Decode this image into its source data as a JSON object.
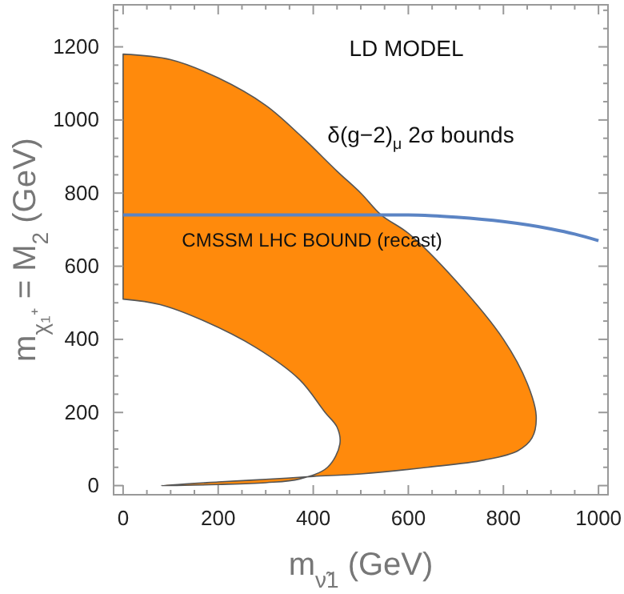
{
  "chart_data": {
    "type": "line",
    "xlabel": "m$_{ν̃1}$ (GeV)",
    "ylabel": "m$_{χ₁⁺}$ = M$_{2}$ (GeV)",
    "xlim": [
      -20,
      1020
    ],
    "ylim": [
      -25,
      1315
    ],
    "xticks": [
      0,
      {
        "value": 50,
        "label": null
      },
      {
        "value": 100,
        "label": null
      },
      {
        "value": 150,
        "label": null
      },
      200,
      {
        "value": 250,
        "label": null
      },
      {
        "value": 300,
        "label": null
      },
      {
        "value": 350,
        "label": null
      },
      400,
      {
        "value": 450,
        "label": null
      },
      {
        "value": 500,
        "label": null
      },
      {
        "value": 550,
        "label": null
      },
      600,
      {
        "value": 650,
        "label": null
      },
      {
        "value": 700,
        "label": null
      },
      {
        "value": 750,
        "label": null
      },
      800,
      {
        "value": 850,
        "label": null
      },
      {
        "value": 900,
        "label": null
      },
      {
        "value": 950,
        "label": null
      },
      1000
    ],
    "yticks": [
      0,
      {
        "value": 50,
        "label": null
      },
      {
        "value": 100,
        "label": null
      },
      {
        "value": 150,
        "label": null
      },
      200,
      {
        "value": 250,
        "label": null
      },
      {
        "value": 300,
        "label": null
      },
      {
        "value": 350,
        "label": null
      },
      400,
      {
        "value": 450,
        "label": null
      },
      {
        "value": 500,
        "label": null
      },
      {
        "value": 550,
        "label": null
      },
      600,
      {
        "value": 650,
        "label": null
      },
      {
        "value": 700,
        "label": null
      },
      {
        "value": 750,
        "label": null
      },
      800,
      {
        "value": 850,
        "label": null
      },
      {
        "value": 900,
        "label": null
      },
      {
        "value": 950,
        "label": null
      },
      1000,
      {
        "value": 1050,
        "label": null
      },
      {
        "value": 1100,
        "label": null
      },
      {
        "value": 1150,
        "label": null
      },
      1200,
      {
        "value": 1250,
        "label": null
      },
      {
        "value": 1300,
        "label": null
      }
    ],
    "grid": false,
    "series": [
      {
        "type": "area",
        "color": "#ff8a0c",
        "x": [
          0,
          100,
          200,
          300,
          375,
          450,
          500,
          543,
          600,
          700,
          800,
          850,
          869,
          860,
          830,
          760,
          640,
          500,
          400,
          300,
          200,
          80,
          200,
          300,
          371,
          430,
          456,
          450,
          425,
          371,
          280,
          169,
          78,
          0
        ],
        "values": [
          1180,
          1165,
          1115,
          1040,
          955,
          860,
          800,
          740,
          690,
          560,
          400,
          280,
          190,
          130,
          95,
          70,
          50,
          32,
          25,
          17,
          10,
          0,
          3,
          8,
          18,
          50,
          114,
          160,
          200,
          290,
          377,
          451,
          495,
          510
        ]
      },
      {
        "type": "line",
        "color": "#5b84c4",
        "x": [
          0,
          200,
          400,
          600,
          650,
          700,
          800,
          900,
          950,
          1000
        ],
        "values": [
          740,
          740,
          740,
          740,
          738,
          734,
          722,
          702,
          688,
          670
        ]
      }
    ],
    "annotations": [
      "LD MODEL",
      "δ(g−2)$_{μ}$ 2σ bounds",
      "CMSSM LHC BOUND (recast)"
    ]
  }
}
